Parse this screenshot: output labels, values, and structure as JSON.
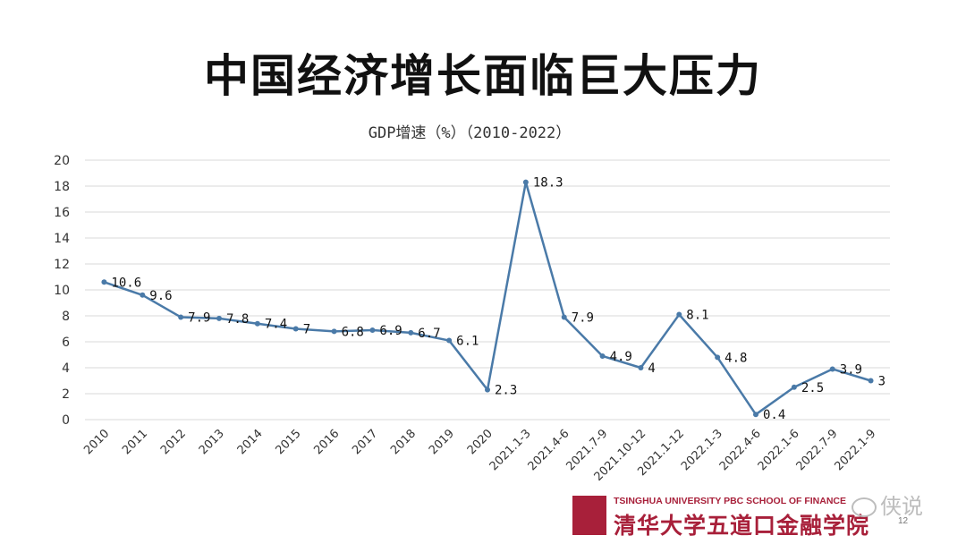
{
  "slide": {
    "title": "中国经济增长面临巨大压力",
    "page_number": "12"
  },
  "logo": {
    "name_en": "TSINGHUA UNIVERSITY PBC SCHOOL OF FINANCE",
    "name_cn": "清华大学五道口金融学院"
  },
  "watermark": {
    "text": "侠说",
    "icon": "wechat-icon"
  },
  "colors": {
    "line": "#4a7aa8",
    "grid": "#d9d9d9",
    "brand": "#a8203a"
  },
  "chart_data": {
    "type": "line",
    "title": "GDP增速（%）（2010-2022）",
    "xlabel": "",
    "ylabel": "",
    "ylim": [
      0,
      20
    ],
    "yticks": [
      0,
      2,
      4,
      6,
      8,
      10,
      12,
      14,
      16,
      18,
      20
    ],
    "grid": true,
    "legend": "none",
    "categories": [
      "2010",
      "2011",
      "2012",
      "2013",
      "2014",
      "2015",
      "2016",
      "2017",
      "2018",
      "2019",
      "2020",
      "2021.1-3",
      "2021.4-6",
      "2021.7-9",
      "2021.10-12",
      "2021.1-12",
      "2022.1-3",
      "2022.4-6",
      "2022.1-6",
      "2022.7-9",
      "2022.1-9"
    ],
    "series": [
      {
        "name": "",
        "values": [
          10.6,
          9.6,
          7.9,
          7.8,
          7.4,
          7,
          6.8,
          6.9,
          6.7,
          6.1,
          2.3,
          18.3,
          7.9,
          4.9,
          4,
          8.1,
          4.8,
          0.4,
          2.5,
          3.9,
          3
        ],
        "data_labels": [
          "10.6",
          "9.6",
          "7.9",
          "7.8",
          "7.4",
          "7",
          "6.8",
          "6.9",
          "6.7",
          "6.1",
          "2.3",
          "18.3",
          "7.9",
          "4.9",
          "4",
          "8.1",
          "4.8",
          "0.4",
          "2.5",
          "3.9",
          "3"
        ]
      }
    ]
  }
}
